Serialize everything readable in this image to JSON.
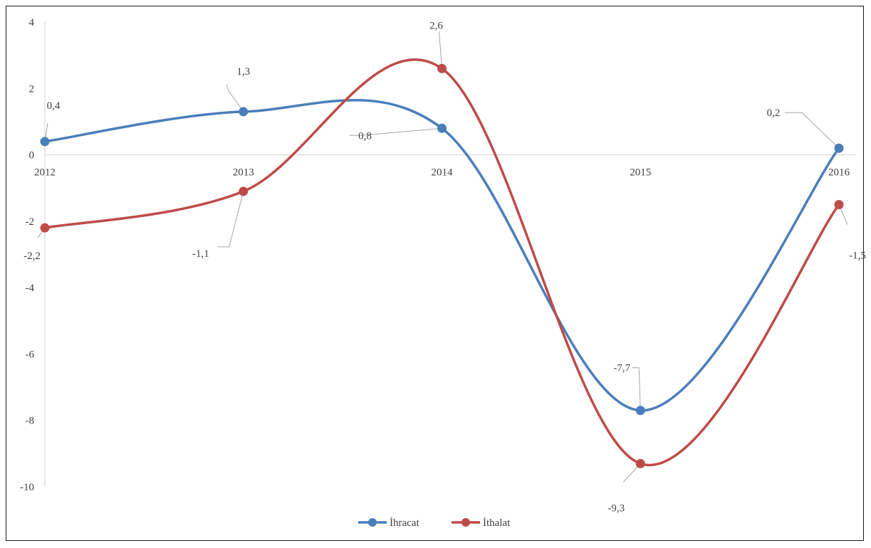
{
  "chart_data": {
    "type": "line",
    "smooth": true,
    "title": "",
    "xlabel": "",
    "ylabel": "",
    "categories": [
      "2012",
      "2013",
      "2014",
      "2015",
      "2016"
    ],
    "ylim": [
      -10,
      4
    ],
    "yticks": [
      4,
      2,
      0,
      -2,
      -4,
      -6,
      -8,
      -10
    ],
    "ytick_labels": [
      "4",
      "2",
      "0",
      "-2",
      "-4",
      "-6",
      "-8",
      "-10"
    ],
    "grid": false,
    "legend_position": "bottom-center",
    "series": [
      {
        "name": "İhracat",
        "color": "#4a7ebb",
        "values": [
          0.4,
          1.3,
          0.8,
          -7.7,
          0.2
        ],
        "labels": [
          "0,4",
          "1,3",
          "0,8",
          "-7,7",
          "0,2"
        ]
      },
      {
        "name": "İthalat",
        "color": "#be4b48",
        "values": [
          -2.2,
          -1.1,
          2.6,
          -9.3,
          -1.5
        ],
        "labels": [
          "-2,2",
          "-1,1",
          "2,6",
          "-9,3",
          "-1,5"
        ]
      }
    ]
  }
}
